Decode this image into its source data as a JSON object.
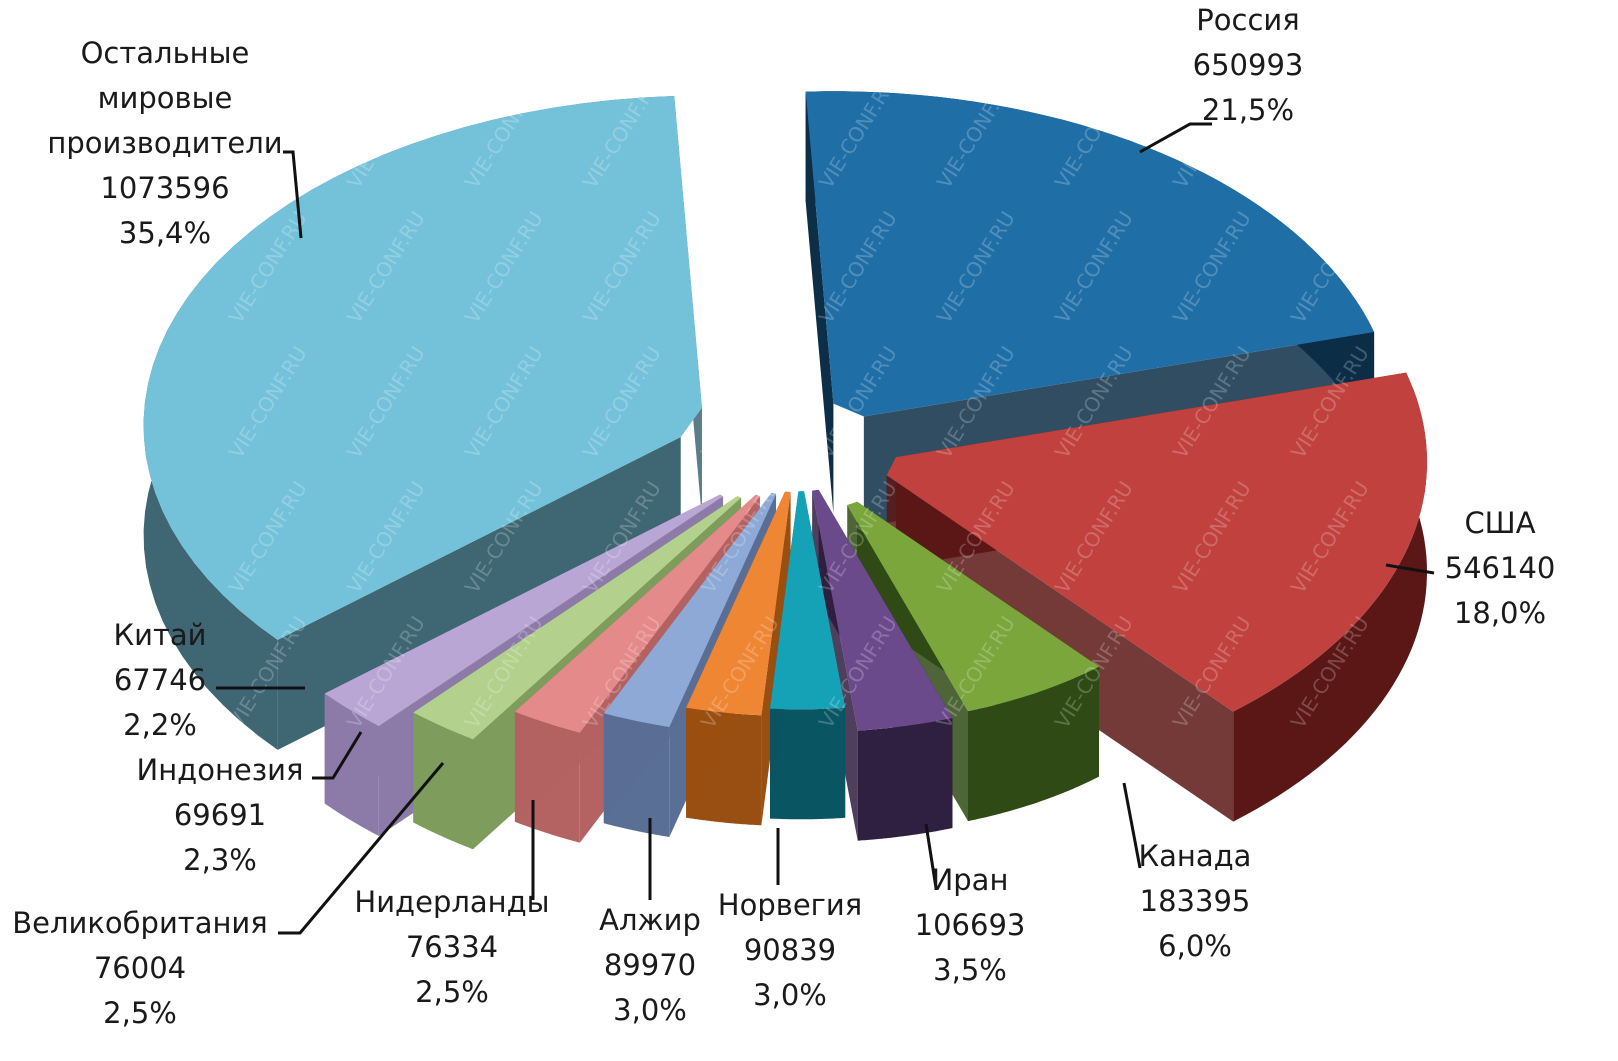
{
  "chart_data": {
    "type": "pie",
    "title": "",
    "slices": [
      {
        "label": "Россия",
        "value": 650993,
        "percent": "21,5%",
        "color": "#1F6FA6",
        "dark": "#0C2E47"
      },
      {
        "label": "США",
        "value": 546140,
        "percent": "18,0%",
        "color": "#C0413E",
        "dark": "#5A1715"
      },
      {
        "label": "Канада",
        "value": 183395,
        "percent": "6,0%",
        "color": "#7AA63C",
        "dark": "#2F4A14"
      },
      {
        "label": "Иран",
        "value": 106693,
        "percent": "3,5%",
        "color": "#6B4A8C",
        "dark": "#2F1F40"
      },
      {
        "label": "Норвегия",
        "value": 90839,
        "percent": "3,0%",
        "color": "#16A2B6",
        "dark": "#0A5562"
      },
      {
        "label": "Алжир",
        "value": 89970,
        "percent": "3,0%",
        "color": "#EE8633",
        "dark": "#9A4F12"
      },
      {
        "label": "Нидерланды",
        "value": 76334,
        "percent": "2,5%",
        "color": "#8EA9D6",
        "dark": "#5A6F95"
      },
      {
        "label": "Великобритания",
        "value": 76004,
        "percent": "2,5%",
        "color": "#E58A8A",
        "dark": "#B46262"
      },
      {
        "label": "Индонезия",
        "value": 69691,
        "percent": "2,3%",
        "color": "#B3D08C",
        "dark": "#7E9C5C"
      },
      {
        "label": "Китай",
        "value": 67746,
        "percent": "2,2%",
        "color": "#B9A6D4",
        "dark": "#8C7AA8"
      },
      {
        "label": "Остальные мировые производители",
        "label_lines": [
          "Остальные",
          "мировые",
          "производители"
        ],
        "value": 1073596,
        "percent": "35,4%",
        "color": "#74C2D9",
        "dark": "#3E6673"
      }
    ]
  },
  "watermark": "VIE-CONF.RU"
}
